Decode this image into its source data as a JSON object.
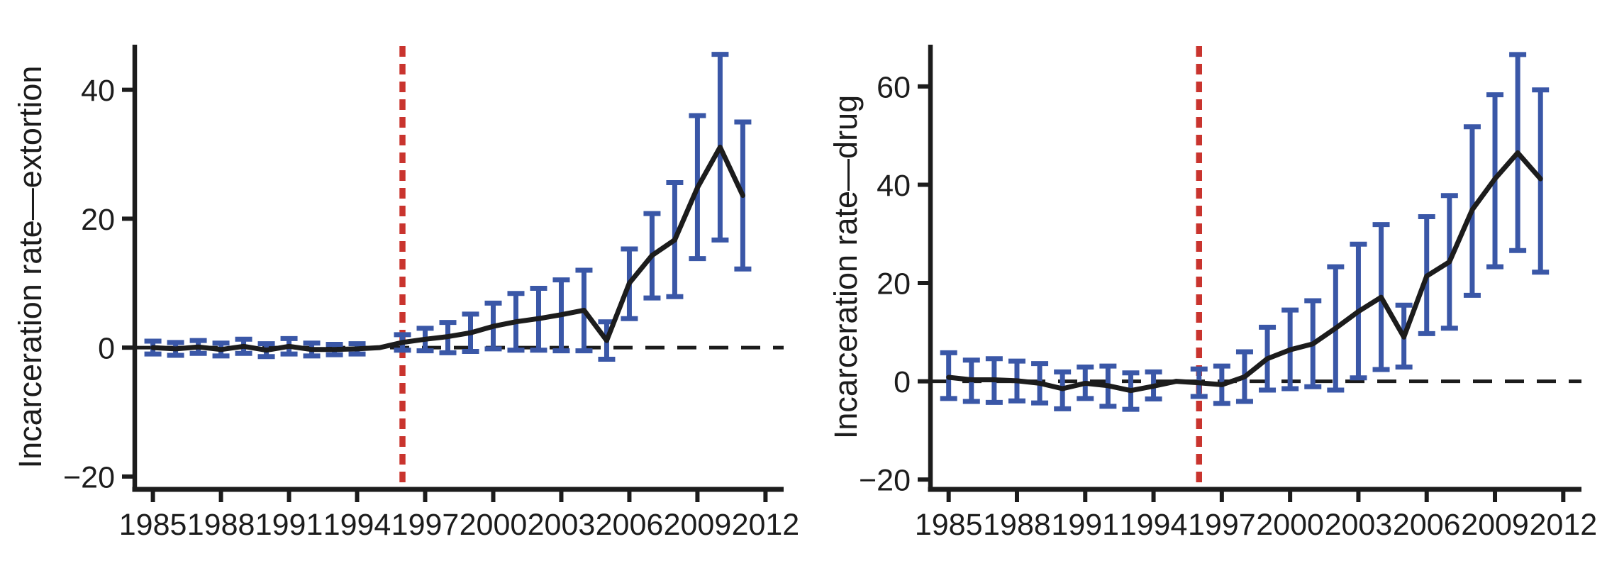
{
  "figure": {
    "description": "Two-panel event-study figure: incarceration rates for extortion and drug crimes, annual point estimates with confidence intervals, 1985-2011, reference year 1995 omitted, treatment marked at 1996",
    "background": "#ffffff"
  },
  "colors": {
    "series_line": "#1c1c1c",
    "error_bar": "#3a57a7",
    "treatment_line": "#c9342e",
    "zero_line": "#1c1c1c",
    "axis": "#1c1c1c"
  },
  "chart_data": [
    {
      "id": "extortion",
      "type": "line",
      "title": "",
      "xlabel": "",
      "ylabel": "Incarceration rate—extortion",
      "x_ticks": [
        1985,
        1988,
        1991,
        1994,
        1997,
        2000,
        2003,
        2006,
        2009,
        2012
      ],
      "y_ticks": [
        -20,
        0,
        20,
        40
      ],
      "xlim": [
        1984.2,
        2012.8
      ],
      "ylim": [
        -22,
        47
      ],
      "grid": false,
      "legend": false,
      "zero_reference_line_y": 0,
      "treatment_line_x": 1996,
      "omitted_reference_year": 1995,
      "years": [
        1985,
        1986,
        1987,
        1988,
        1989,
        1990,
        1991,
        1992,
        1993,
        1994,
        1995,
        1996,
        1997,
        1998,
        1999,
        2000,
        2001,
        2002,
        2003,
        2004,
        2005,
        2006,
        2007,
        2008,
        2009,
        2010,
        2011
      ],
      "estimates": [
        0,
        -0.2,
        0.1,
        -0.3,
        0.2,
        -0.4,
        0.2,
        -0.3,
        -0.3,
        -0.2,
        0,
        0.8,
        1.3,
        1.7,
        2.3,
        3.3,
        4.0,
        4.5,
        5.1,
        5.8,
        1.1,
        10.0,
        14.3,
        16.7,
        24.8,
        31.1,
        23.6
      ],
      "ci_low": [
        -1.0,
        -1.2,
        -0.9,
        -1.3,
        -0.9,
        -1.4,
        -1.0,
        -1.3,
        -1.1,
        -1.0,
        null,
        -0.4,
        -0.5,
        -0.8,
        -0.6,
        -0.2,
        -0.4,
        -0.4,
        -0.5,
        -0.5,
        -1.8,
        4.5,
        7.7,
        7.9,
        13.8,
        16.7,
        12.2
      ],
      "ci_high": [
        1.0,
        0.8,
        1.1,
        0.7,
        1.3,
        0.6,
        1.4,
        0.7,
        0.5,
        0.6,
        null,
        2.0,
        3.0,
        3.9,
        5.2,
        6.9,
        8.4,
        9.2,
        10.5,
        12.0,
        4.0,
        15.3,
        20.8,
        25.6,
        36.0,
        45.5,
        35.0
      ]
    },
    {
      "id": "drug",
      "type": "line",
      "title": "",
      "xlabel": "",
      "ylabel": "Incarceration rate—drug",
      "x_ticks": [
        1985,
        1988,
        1991,
        1994,
        1997,
        2000,
        2003,
        2006,
        2009,
        2012
      ],
      "y_ticks": [
        -20,
        0,
        20,
        40,
        60
      ],
      "xlim": [
        1984.2,
        2012.8
      ],
      "ylim": [
        -22,
        68.5
      ],
      "grid": false,
      "legend": false,
      "zero_reference_line_y": 0,
      "treatment_line_x": 1996,
      "omitted_reference_year": 1995,
      "years": [
        1985,
        1986,
        1987,
        1988,
        1989,
        1990,
        1991,
        1992,
        1993,
        1994,
        1995,
        1996,
        1997,
        1998,
        1999,
        2000,
        2001,
        2002,
        2003,
        2004,
        2005,
        2006,
        2007,
        2008,
        2009,
        2010,
        2011
      ],
      "estimates": [
        0.8,
        0.3,
        0.3,
        0.1,
        -0.4,
        -1.5,
        -0.4,
        -0.9,
        -1.9,
        -1.0,
        0,
        -0.3,
        -0.7,
        0.9,
        4.6,
        6.4,
        7.6,
        10.8,
        14.2,
        17.1,
        9.0,
        21.4,
        24.3,
        34.9,
        41.2,
        46.5,
        41.2
      ],
      "ci_low": [
        -3.5,
        -4.1,
        -4.3,
        -4.0,
        -4.4,
        -5.6,
        -3.5,
        -5.1,
        -5.7,
        -3.6,
        null,
        -3.1,
        -4.5,
        -4.1,
        -1.8,
        -1.5,
        -1.1,
        -1.8,
        0.7,
        2.4,
        2.9,
        9.7,
        10.8,
        17.5,
        23.3,
        26.6,
        22.2
      ],
      "ci_high": [
        5.8,
        4.3,
        4.6,
        4.1,
        3.6,
        1.9,
        2.9,
        3.1,
        1.7,
        1.9,
        null,
        2.5,
        3.1,
        6.0,
        11.0,
        14.5,
        16.4,
        23.3,
        27.9,
        31.9,
        15.5,
        33.5,
        37.8,
        51.8,
        58.3,
        66.5,
        59.3
      ]
    }
  ]
}
